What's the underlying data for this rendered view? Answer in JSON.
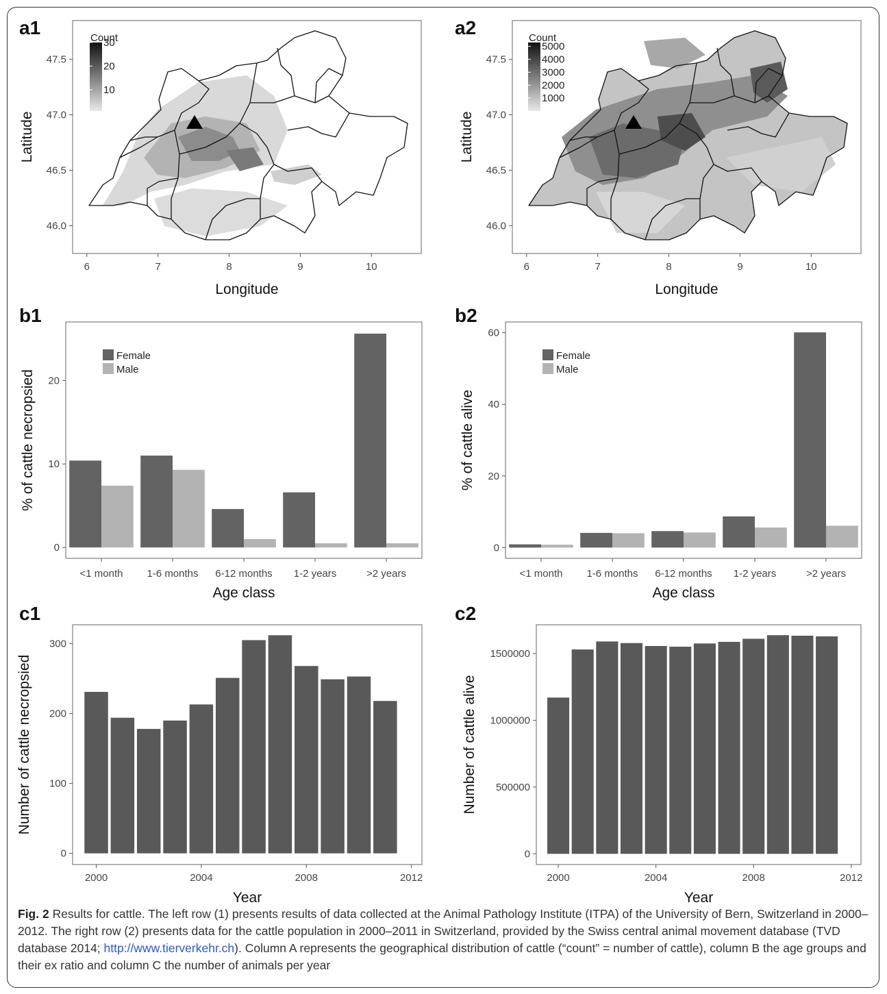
{
  "figure": {
    "caption_label": "Fig. 2",
    "caption_text_1": " Results for cattle. The left row (1) presents results of data collected at the Animal Pathology Institute (ITPA) of the University of Bern, Switzerland in 2000–2012. The right row (2) presents data for the cattle population in 2000–2011 in Switzerland, provided by the Swiss central animal movement database (TVD database 2014; ",
    "caption_link": "http://www.tierverkehr.ch",
    "caption_text_2": "). Column A represents the geographical distribution of cattle (“count” = number of cattle), column B the age groups and their ex ratio and column C the number of animals per year"
  },
  "colors": {
    "female": "#636363",
    "male": "#b3b3b3",
    "bar": "#595959",
    "axis_frame": "#7f7f7f",
    "marker": "#000000"
  },
  "chart_data": [
    {
      "panel": "a1",
      "type": "heatmap",
      "xlabel": "Longitude",
      "ylabel": "Latitude",
      "xlim": [
        5.8,
        10.7
      ],
      "ylim": [
        45.75,
        47.85
      ],
      "xticks": [
        6,
        7,
        8,
        9,
        10
      ],
      "yticks": [
        46.0,
        46.5,
        47.0,
        47.5
      ],
      "legend": {
        "title": "Count",
        "ticks": [
          30,
          20,
          10
        ],
        "range": [
          1,
          30
        ],
        "placement": "top-left"
      },
      "marker": {
        "lon": 7.45,
        "lat": 46.95,
        "shape": "triangle"
      }
    },
    {
      "panel": "a2",
      "type": "heatmap",
      "xlabel": "Longitude",
      "ylabel": "Latitude",
      "xlim": [
        5.8,
        10.7
      ],
      "ylim": [
        45.75,
        47.85
      ],
      "xticks": [
        6,
        7,
        8,
        9,
        10
      ],
      "yticks": [
        46.0,
        46.5,
        47.0,
        47.5
      ],
      "legend": {
        "title": "Count",
        "ticks": [
          5000,
          4000,
          3000,
          2000,
          1000
        ],
        "range": [
          1,
          5300
        ],
        "placement": "top-left"
      },
      "marker": {
        "lon": 7.45,
        "lat": 46.95,
        "shape": "triangle"
      }
    },
    {
      "panel": "b1",
      "type": "bar",
      "xlabel": "Age class",
      "ylabel": "% of cattle necropsied",
      "categories": [
        "<1 month",
        "1-6 months",
        "6-12 months",
        "1-2 years",
        ">2 years"
      ],
      "series": [
        {
          "name": "Female",
          "values": [
            10.4,
            11.0,
            4.6,
            6.6,
            25.6
          ]
        },
        {
          "name": "Male",
          "values": [
            7.4,
            9.3,
            1.0,
            0.5,
            0.5
          ]
        }
      ],
      "ylim": [
        -1.3,
        27
      ],
      "yticks": [
        0,
        10,
        20
      ],
      "legend": "top-left"
    },
    {
      "panel": "b2",
      "type": "bar",
      "xlabel": "Age class",
      "ylabel": "% of cattle alive",
      "categories": [
        "<1 month",
        "1-6 months",
        "6-12 months",
        "1-2 years",
        ">2 years"
      ],
      "series": [
        {
          "name": "Female",
          "values": [
            0.9,
            4.1,
            4.6,
            8.7,
            60.1
          ]
        },
        {
          "name": "Male",
          "values": [
            0.8,
            4.0,
            4.2,
            5.6,
            6.1
          ]
        }
      ],
      "ylim": [
        -3,
        63
      ],
      "yticks": [
        0,
        20,
        40,
        60
      ],
      "legend": "top-left"
    },
    {
      "panel": "c1",
      "type": "bar",
      "xlabel": "Year",
      "ylabel": "Number of cattle necropsied",
      "x": [
        2000,
        2001,
        2002,
        2003,
        2004,
        2005,
        2006,
        2007,
        2008,
        2009,
        2010,
        2011
      ],
      "values": [
        231,
        194,
        178,
        190,
        213,
        251,
        305,
        312,
        268,
        249,
        253,
        218
      ],
      "xlim": [
        1999.1,
        2012.4
      ],
      "xticks": [
        2000,
        2004,
        2008,
        2012
      ],
      "ylim": [
        -16,
        327
      ],
      "yticks": [
        0,
        100,
        200,
        300
      ]
    },
    {
      "panel": "c2",
      "type": "bar",
      "xlabel": "Year",
      "ylabel": "Number of cattle alive",
      "x": [
        2000,
        2001,
        2002,
        2003,
        2004,
        2005,
        2006,
        2007,
        2008,
        2009,
        2010,
        2011
      ],
      "values": [
        1170000,
        1530000,
        1590000,
        1578000,
        1556000,
        1551000,
        1575000,
        1587000,
        1610000,
        1637000,
        1633000,
        1628000
      ],
      "xlim": [
        1999.1,
        2012.4
      ],
      "xticks": [
        2000,
        2004,
        2008,
        2012
      ],
      "ylim": [
        -80000,
        1715000
      ],
      "yticks": [
        0,
        500000,
        1000000,
        1500000
      ]
    }
  ]
}
